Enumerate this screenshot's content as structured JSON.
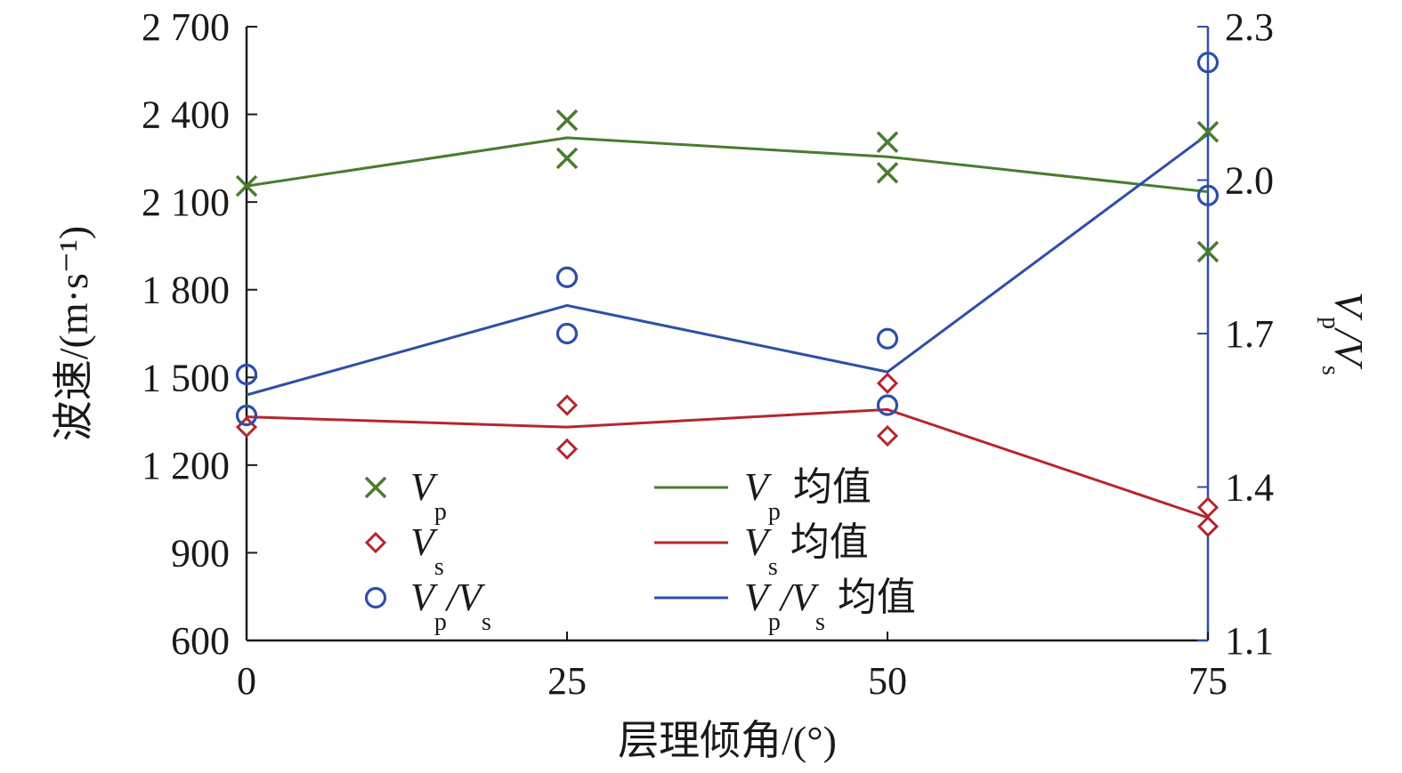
{
  "chart_data": {
    "type": "scatter",
    "x_categories": [
      0,
      25,
      50,
      75
    ],
    "xlabel": "层理倾角/(°)",
    "ylabel": "波速/(m·s⁻¹)",
    "y2label": "Vp/Vs",
    "x_tick_labels": [
      "0",
      "25",
      "50",
      "75"
    ],
    "y_tick_labels": [
      "600",
      "900",
      "1 200",
      "1 500",
      "1 800",
      "2 100",
      "2 400",
      "2 700"
    ],
    "y2_tick_labels": [
      "1.1",
      "1.4",
      "1.7",
      "2.0",
      "2.3"
    ],
    "xlim": [
      0,
      75
    ],
    "ylim": [
      600,
      2700
    ],
    "y2lim": [
      1.1,
      2.3
    ],
    "colors": {
      "vp": "#4a7c2e",
      "vs": "#b5262e",
      "ratio": "#2e4fa8",
      "right_axis": "#2e4fa8"
    },
    "series": [
      {
        "key": "vp",
        "axis": "left",
        "marker": "x",
        "points": [
          [
            0,
            2155
          ],
          [
            25,
            2380
          ],
          [
            25,
            2250
          ],
          [
            50,
            2305
          ],
          [
            50,
            2200
          ],
          [
            75,
            2340
          ],
          [
            75,
            1930
          ]
        ]
      },
      {
        "key": "vs",
        "axis": "left",
        "marker": "diamond",
        "points": [
          [
            0,
            1330
          ],
          [
            25,
            1405
          ],
          [
            25,
            1255
          ],
          [
            50,
            1480
          ],
          [
            50,
            1300
          ],
          [
            75,
            1055
          ],
          [
            75,
            990
          ]
        ]
      },
      {
        "key": "ratio",
        "axis": "right",
        "marker": "circle",
        "points": [
          [
            0,
            1.62
          ],
          [
            0,
            1.54
          ],
          [
            25,
            1.81
          ],
          [
            25,
            1.7
          ],
          [
            50,
            1.69
          ],
          [
            50,
            1.56
          ],
          [
            75,
            2.23
          ],
          [
            75,
            1.97
          ]
        ]
      },
      {
        "key": "vp_mean",
        "axis": "left",
        "marker": "line",
        "points": [
          [
            0,
            2155
          ],
          [
            25,
            2320
          ],
          [
            50,
            2255
          ],
          [
            75,
            2135
          ]
        ]
      },
      {
        "key": "vs_mean",
        "axis": "left",
        "marker": "line",
        "points": [
          [
            0,
            1365
          ],
          [
            25,
            1330
          ],
          [
            50,
            1390
          ],
          [
            75,
            1020
          ]
        ]
      },
      {
        "key": "ratio_mean",
        "axis": "right",
        "marker": "line",
        "points": [
          [
            0,
            1.58
          ],
          [
            25,
            1.755
          ],
          [
            50,
            1.625
          ],
          [
            75,
            2.09
          ]
        ]
      }
    ],
    "legend": {
      "placement": "lower-left",
      "mean_suffix": "均值",
      "entries": [
        {
          "series": "vp",
          "main": "V",
          "sub": "p"
        },
        {
          "series": "vs",
          "main": "V",
          "sub": "s"
        },
        {
          "series": "ratio",
          "main": "V",
          "sub": "p",
          "main2": "/V",
          "sub2": "s"
        },
        {
          "series": "vp_mean",
          "main": "V",
          "sub": "p"
        },
        {
          "series": "vs_mean",
          "main": "V",
          "sub": "s"
        },
        {
          "series": "ratio_mean",
          "main": "V",
          "sub": "p",
          "main2": "/V",
          "sub2": "s"
        }
      ]
    }
  }
}
